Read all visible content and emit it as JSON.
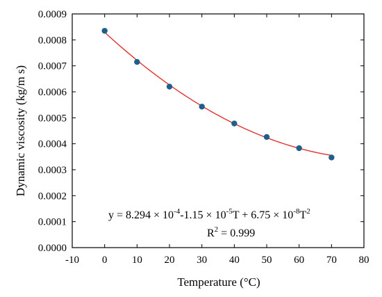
{
  "chart_data": {
    "type": "scatter",
    "xlabel": "Temperature (°C)",
    "ylabel": "Dynamic viscosity (kg/m s)",
    "xlim": [
      -10,
      80
    ],
    "ylim": [
      0,
      0.0009
    ],
    "x_ticks": [
      "-10",
      "0",
      "10",
      "20",
      "30",
      "40",
      "50",
      "60",
      "70",
      "80"
    ],
    "y_ticks": [
      "0.0000",
      "0.0001",
      "0.0002",
      "0.0003",
      "0.0004",
      "0.0005",
      "0.0006",
      "0.0007",
      "0.0008",
      "0.0009"
    ],
    "series": [
      {
        "points": [
          {
            "x": 0,
            "y": 0.000835
          },
          {
            "x": 10,
            "y": 0.000715
          },
          {
            "x": 20,
            "y": 0.00062
          },
          {
            "x": 30,
            "y": 0.000543
          },
          {
            "x": 40,
            "y": 0.000478
          },
          {
            "x": 50,
            "y": 0.000426
          },
          {
            "x": 60,
            "y": 0.000383
          },
          {
            "x": 70,
            "y": 0.000347
          }
        ]
      }
    ],
    "fit": {
      "coefficients": [
        0.0008294,
        -1.15e-05,
        6.75e-08
      ],
      "x_range": [
        0,
        70
      ],
      "equation": {
        "prefix": "y = 8.294 × 10",
        "exp1": "-4",
        "mid1": "-1.15 × 10",
        "exp2": "-5",
        "mid2": "T + 6.75 × 10",
        "exp3": "-8",
        "mid3": "T",
        "exp4": "2"
      },
      "r2": {
        "base": "R",
        "exp": "2",
        "rest": " = 0.999"
      }
    },
    "colors": {
      "points": "#1f5f8b",
      "fit": "#e03030",
      "axis": "#000000"
    },
    "grid": false
  }
}
